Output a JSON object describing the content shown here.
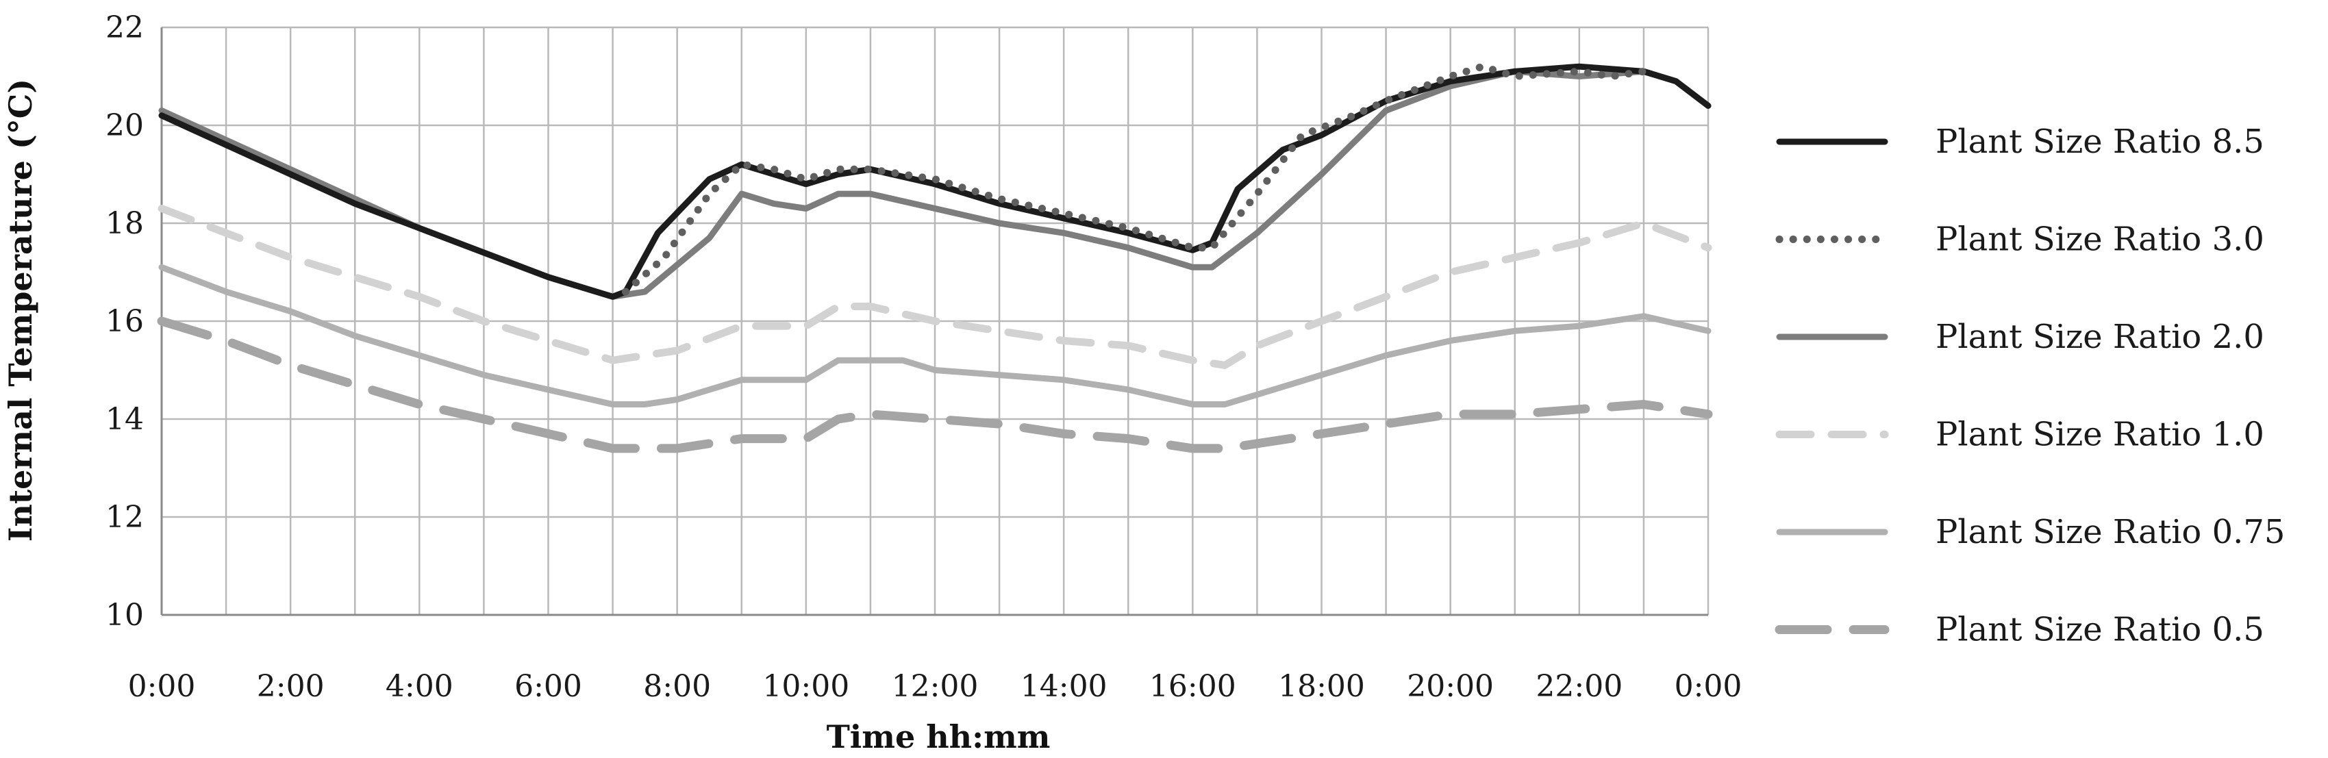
{
  "chart_data": {
    "type": "line",
    "title": "",
    "xlabel": "Time hh:mm",
    "ylabel": "Internal Temperature (°C)",
    "xlim": [
      0,
      24
    ],
    "ylim": [
      10,
      22
    ],
    "x_ticks": [
      {
        "value": 0,
        "label": "0:00"
      },
      {
        "value": 2,
        "label": "2:00"
      },
      {
        "value": 4,
        "label": "4:00"
      },
      {
        "value": 6,
        "label": "6:00"
      },
      {
        "value": 8,
        "label": "8:00"
      },
      {
        "value": 10,
        "label": "10:00"
      },
      {
        "value": 12,
        "label": "12:00"
      },
      {
        "value": 14,
        "label": "14:00"
      },
      {
        "value": 16,
        "label": "16:00"
      },
      {
        "value": 18,
        "label": "18:00"
      },
      {
        "value": 20,
        "label": "20:00"
      },
      {
        "value": 22,
        "label": "22:00"
      },
      {
        "value": 24,
        "label": "0:00"
      }
    ],
    "y_ticks": [
      {
        "value": 10,
        "label": "10"
      },
      {
        "value": 12,
        "label": "12"
      },
      {
        "value": 14,
        "label": "14"
      },
      {
        "value": 16,
        "label": "16"
      },
      {
        "value": 18,
        "label": "18"
      },
      {
        "value": 20,
        "label": "20"
      },
      {
        "value": 22,
        "label": "22"
      }
    ],
    "grid": true,
    "grid_x_step": 1,
    "legend_position": "right",
    "series": [
      {
        "name": "Plant Size Ratio 8.5",
        "color": "#1c1c1c",
        "style": "solid",
        "x": [
          0,
          1,
          2,
          3,
          4,
          5,
          6,
          7,
          7.2,
          7.7,
          8.5,
          9,
          9.5,
          10,
          10.5,
          11,
          12,
          13,
          14,
          15,
          16,
          16.3,
          16.7,
          17.4,
          18,
          19,
          20,
          21,
          22,
          23,
          23.5,
          24
        ],
        "y": [
          20.2,
          19.6,
          19.0,
          18.4,
          17.9,
          17.4,
          16.9,
          16.5,
          16.6,
          17.8,
          18.9,
          19.2,
          19.0,
          18.8,
          19.0,
          19.1,
          18.8,
          18.4,
          18.1,
          17.8,
          17.45,
          17.6,
          18.7,
          19.5,
          19.8,
          20.5,
          20.9,
          21.1,
          21.2,
          21.1,
          20.9,
          20.4
        ]
      },
      {
        "name": "Plant Size Ratio 3.0",
        "color": "#5f5f5f",
        "style": "dotted",
        "x": [
          7.2,
          7.8,
          8.5,
          9,
          9.5,
          10,
          10.5,
          11,
          12,
          13,
          14,
          15,
          16,
          16.3,
          17,
          17.7,
          18.5,
          19,
          20,
          20.5,
          21,
          22,
          22.5,
          23
        ],
        "y": [
          16.6,
          17.3,
          18.6,
          19.2,
          19.1,
          18.9,
          19.1,
          19.1,
          18.9,
          18.5,
          18.2,
          17.9,
          17.5,
          17.5,
          18.6,
          19.8,
          20.2,
          20.5,
          21.0,
          21.2,
          21.0,
          21.1,
          21.0,
          21.1
        ]
      },
      {
        "name": "Plant Size Ratio 2.0",
        "color": "#7d7d7d",
        "style": "solid",
        "x": [
          0,
          1,
          2,
          3,
          4,
          5,
          6,
          7,
          7.5,
          8.5,
          9,
          9.5,
          10,
          10.5,
          11,
          12,
          13,
          14,
          15,
          16,
          16.3,
          17,
          18,
          19,
          20,
          21,
          22,
          23,
          23.5,
          24
        ],
        "y": [
          20.3,
          19.7,
          19.1,
          18.5,
          17.9,
          17.4,
          16.9,
          16.5,
          16.6,
          17.7,
          18.6,
          18.4,
          18.3,
          18.6,
          18.6,
          18.3,
          18.0,
          17.8,
          17.5,
          17.1,
          17.1,
          17.8,
          19.0,
          20.3,
          20.8,
          21.1,
          21.0,
          21.1,
          20.9,
          20.4
        ]
      },
      {
        "name": "Plant Size Ratio 1.0",
        "color": "#d2d2d2",
        "style": "dashed",
        "x": [
          0,
          1,
          2,
          3,
          4,
          5,
          6,
          7,
          8,
          9,
          10,
          10.5,
          11,
          12,
          13,
          14,
          15,
          16,
          16.5,
          17,
          18,
          19,
          20,
          21,
          22,
          23,
          24
        ],
        "y": [
          18.3,
          17.8,
          17.3,
          16.9,
          16.5,
          16.0,
          15.6,
          15.2,
          15.4,
          15.9,
          15.9,
          16.3,
          16.3,
          16.0,
          15.8,
          15.6,
          15.5,
          15.2,
          15.1,
          15.5,
          16.0,
          16.5,
          17.0,
          17.3,
          17.6,
          18.0,
          17.5
        ]
      },
      {
        "name": "Plant Size Ratio 0.75",
        "color": "#b0b0b0",
        "style": "solid",
        "x": [
          0,
          1,
          2,
          3,
          4,
          5,
          6,
          7,
          7.5,
          8,
          9,
          10,
          10.5,
          11,
          11.5,
          12,
          13,
          14,
          15,
          16,
          16.5,
          17,
          18,
          19,
          20,
          21,
          22,
          23,
          24
        ],
        "y": [
          17.1,
          16.6,
          16.2,
          15.7,
          15.3,
          14.9,
          14.6,
          14.3,
          14.3,
          14.4,
          14.8,
          14.8,
          15.2,
          15.2,
          15.2,
          15.0,
          14.9,
          14.8,
          14.6,
          14.3,
          14.3,
          14.5,
          14.9,
          15.3,
          15.6,
          15.8,
          15.9,
          16.1,
          15.8
        ]
      },
      {
        "name": "Plant Size Ratio 0.5",
        "color": "#a5a5a5",
        "style": "long-dash",
        "x": [
          0,
          1,
          2,
          3,
          4,
          5,
          6,
          7,
          8,
          9,
          9.5,
          10,
          10.5,
          11,
          12,
          13,
          14,
          15,
          16,
          16.5,
          17,
          18,
          19,
          20,
          21,
          22,
          23,
          24
        ],
        "y": [
          16.0,
          15.6,
          15.1,
          14.7,
          14.3,
          14.0,
          13.7,
          13.4,
          13.4,
          13.6,
          13.6,
          13.6,
          14.0,
          14.1,
          14.0,
          13.9,
          13.7,
          13.6,
          13.4,
          13.4,
          13.5,
          13.7,
          13.9,
          14.1,
          14.1,
          14.2,
          14.3,
          14.1
        ]
      }
    ]
  }
}
